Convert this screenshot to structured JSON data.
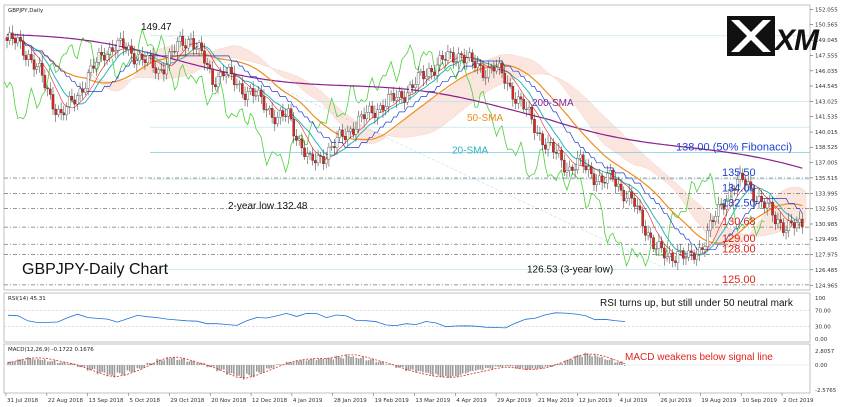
{
  "chart_data": [
    {
      "type": "candlestick",
      "title": "GBPJPY-Daily Chart",
      "symbol_caption": "GBPJPY,Daily",
      "x_ticks": [
        "31 Jul 2018",
        "22 Aug 2018",
        "13 Sep 2018",
        "5 Oct 2018",
        "29 Oct 2018",
        "20 Nov 2018",
        "12 Dec 2018",
        "4 Jan 2019",
        "28 Jan 2019",
        "19 Feb 2019",
        "13 Mar 2019",
        "4 Apr 2019",
        "29 Apr 2019",
        "21 May 2019",
        "12 Jun 2019",
        "4 Jul 2019",
        "26 Jul 2019",
        "19 Aug 2019",
        "10 Sep 2019",
        "2 Oct 2019"
      ],
      "y_ticks": [
        152.055,
        150.565,
        149.045,
        147.555,
        146.035,
        144.545,
        143.025,
        141.535,
        140.015,
        138.525,
        137.005,
        135.515,
        133.995,
        132.505,
        130.985,
        129.495,
        127.975,
        126.485,
        124.965
      ],
      "ylim": [
        124.5,
        152.5
      ],
      "price_lines": [
        {
          "label": "135.50",
          "value": 135.5,
          "color": "blue"
        },
        {
          "label": "134.00",
          "value": 134.0,
          "color": "blue"
        },
        {
          "label": "132.50",
          "value": 132.5,
          "color": "blue"
        },
        {
          "label": "130.68",
          "value": 130.68,
          "color": "red"
        },
        {
          "label": "129.00",
          "value": 129.0,
          "color": "red"
        },
        {
          "label": "128.00",
          "value": 128.0,
          "color": "red"
        },
        {
          "label": "125.00",
          "value": 125.0,
          "color": "red"
        }
      ],
      "fibonacci": {
        "label": "138.00 (50% Fibonacci)",
        "value": 138.0
      },
      "annotations": [
        {
          "text": "149.47",
          "value": 149.47
        },
        {
          "text": "2-year low 132.48",
          "value": 132.48
        },
        {
          "text": "126.53 (3-year low)",
          "value": 126.53
        }
      ],
      "indicators": [
        {
          "name": "200-SMA",
          "color": "#8b1e8f"
        },
        {
          "name": "50-SMA",
          "color": "#f08c1e"
        },
        {
          "name": "20-SMA",
          "color": "#2bb3c0"
        }
      ],
      "close_path": [
        [
          0,
          149.0
        ],
        [
          4,
          148.8
        ],
        [
          8,
          147.6
        ],
        [
          12,
          145.8
        ],
        [
          16,
          143.5
        ],
        [
          20,
          141.6
        ],
        [
          24,
          142.9
        ],
        [
          28,
          144.6
        ],
        [
          32,
          146.3
        ],
        [
          36,
          147.9
        ],
        [
          40,
          148.5
        ],
        [
          44,
          148.2
        ],
        [
          48,
          147.5
        ],
        [
          52,
          146.9
        ],
        [
          56,
          146.0
        ],
        [
          60,
          147.3
        ],
        [
          64,
          148.7
        ],
        [
          68,
          149.3
        ],
        [
          72,
          147.5
        ],
        [
          76,
          145.2
        ],
        [
          80,
          145.9
        ],
        [
          84,
          145.0
        ],
        [
          88,
          144.1
        ],
        [
          92,
          143.5
        ],
        [
          96,
          142.6
        ],
        [
          100,
          141.2
        ],
        [
          104,
          141.7
        ],
        [
          108,
          139.2
        ],
        [
          112,
          136.9
        ],
        [
          116,
          137.6
        ],
        [
          120,
          138.4
        ],
        [
          124,
          139.6
        ],
        [
          128,
          140.6
        ],
        [
          132,
          141.4
        ],
        [
          136,
          142.3
        ],
        [
          140,
          142.8
        ],
        [
          144,
          143.4
        ],
        [
          148,
          144.1
        ],
        [
          152,
          145.0
        ],
        [
          156,
          146.1
        ],
        [
          160,
          146.9
        ],
        [
          164,
          147.3
        ],
        [
          168,
          147.8
        ],
        [
          172,
          146.6
        ],
        [
          176,
          146.1
        ],
        [
          180,
          146.4
        ],
        [
          184,
          145.2
        ],
        [
          188,
          143.6
        ],
        [
          192,
          142.0
        ],
        [
          196,
          140.2
        ],
        [
          200,
          138.5
        ],
        [
          204,
          137.6
        ],
        [
          208,
          136.4
        ],
        [
          212,
          136.9
        ],
        [
          216,
          136.1
        ],
        [
          220,
          135.0
        ],
        [
          224,
          135.6
        ],
        [
          228,
          134.1
        ],
        [
          232,
          132.8
        ],
        [
          236,
          130.7
        ],
        [
          240,
          128.6
        ],
        [
          244,
          127.6
        ],
        [
          248,
          128.3
        ],
        [
          252,
          127.4
        ],
        [
          256,
          128.5
        ],
        [
          260,
          130.7
        ],
        [
          264,
          132.6
        ],
        [
          268,
          134.8
        ],
        [
          272,
          135.2
        ],
        [
          276,
          134.1
        ],
        [
          280,
          132.9
        ],
        [
          284,
          131.4
        ],
        [
          288,
          130.9
        ],
        [
          292,
          130.68
        ]
      ]
    },
    {
      "type": "line",
      "title": "RSI(14) 45.31",
      "y_ticks": [
        "100",
        "70.00",
        "30.00",
        "0.00"
      ],
      "ylim": [
        0,
        100
      ],
      "annotation": "RSI turns up, but still under 50 neutral mark",
      "values": [
        58,
        54,
        47,
        40,
        38,
        44,
        52,
        58,
        55,
        50,
        46,
        44,
        49,
        55,
        57,
        52,
        46,
        49,
        44,
        41,
        40,
        37,
        33,
        36,
        44,
        50,
        54,
        56,
        60,
        58,
        62,
        60,
        55,
        58,
        54,
        48,
        44,
        40,
        37,
        32,
        35,
        38,
        42,
        37,
        33,
        31,
        30,
        34,
        28,
        26,
        30,
        38,
        46,
        54,
        58,
        62,
        66,
        60,
        55,
        50,
        47,
        43,
        45.31
      ]
    },
    {
      "type": "bar",
      "title": "MACD(12,26,9) -0.1722 0.1676",
      "y_ticks": [
        "2.8057",
        "0.00",
        "-2.5765"
      ],
      "annotation": "MACD weakens below signal line",
      "histogram": [
        0.5,
        0.8,
        1.1,
        1.0,
        0.7,
        0.4,
        0.2,
        -0.3,
        -0.8,
        -1.4,
        -1.9,
        -1.5,
        -1.0,
        -0.5,
        0.3,
        0.9,
        1.3,
        1.0,
        0.6,
        0.3,
        -0.3,
        -0.9,
        -1.6,
        -2.1,
        -1.7,
        -1.1,
        -0.5,
        0.1,
        0.5,
        0.8,
        0.9,
        0.9,
        1.0,
        1.3,
        1.6,
        1.3,
        0.9,
        0.5,
        0.1,
        -0.4,
        -0.9,
        -1.2,
        -1.5,
        -1.7,
        -1.8,
        -1.6,
        -1.2,
        -0.9,
        -0.6,
        -0.3,
        -0.2,
        -0.5,
        -0.7,
        -0.6,
        -0.3,
        0.2,
        0.8,
        1.4,
        1.7,
        1.5,
        1.0,
        0.5,
        -0.17
      ],
      "signal": [
        0.3,
        0.6,
        0.9,
        1.0,
        0.9,
        0.6,
        0.3,
        0.0,
        -0.5,
        -1.0,
        -1.5,
        -1.6,
        -1.3,
        -0.8,
        -0.2,
        0.5,
        1.0,
        1.1,
        0.8,
        0.4,
        0.0,
        -0.5,
        -1.1,
        -1.7,
        -1.8,
        -1.4,
        -0.9,
        -0.3,
        0.2,
        0.6,
        0.8,
        0.9,
        0.9,
        1.1,
        1.4,
        1.4,
        1.1,
        0.7,
        0.3,
        -0.1,
        -0.6,
        -1.0,
        -1.3,
        -1.6,
        -1.7,
        -1.7,
        -1.4,
        -1.1,
        -0.8,
        -0.5,
        -0.3,
        -0.4,
        -0.6,
        -0.6,
        -0.4,
        0.0,
        0.5,
        1.1,
        1.5,
        1.5,
        1.2,
        0.7,
        0.17
      ]
    }
  ],
  "logo": {
    "text": "XM"
  }
}
